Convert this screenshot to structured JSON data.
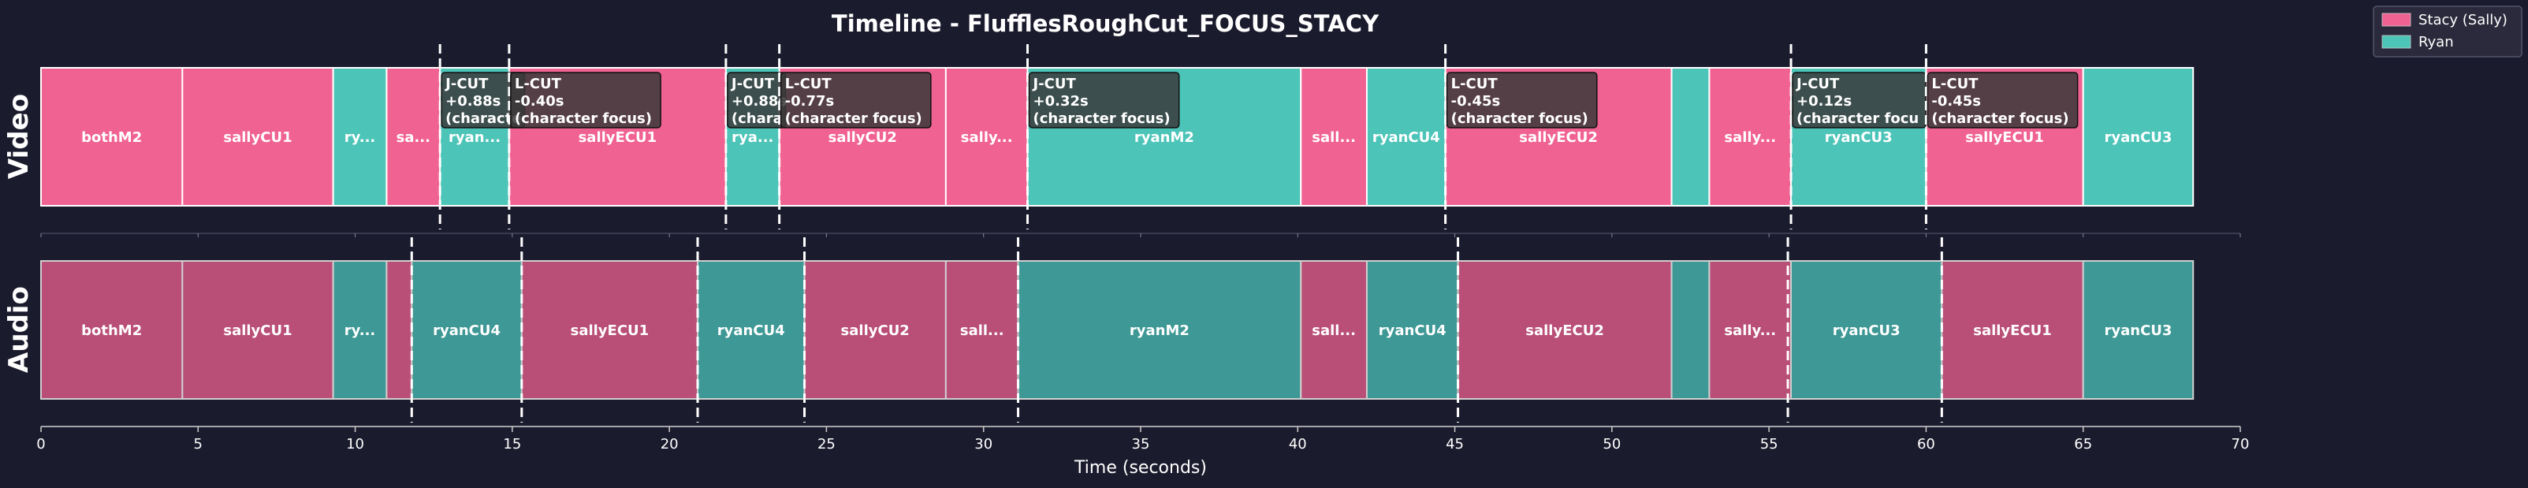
{
  "colors": {
    "background": "#1b1b2e",
    "stacy": "#f06292",
    "ryan": "#4dc4b8",
    "stacy_audio": "#b94f77",
    "ryan_audio": "#3e9895",
    "label_bg": "#3a3a3a",
    "text": "#ffffff",
    "axis": "#cccccc"
  },
  "chart_data": {
    "type": "timeline",
    "title": "Timeline - FlufflesRoughCut_FOCUS_STACY",
    "xlabel": "Time (seconds)",
    "xlim": [
      0,
      70
    ],
    "xticks": [
      0,
      5,
      10,
      15,
      20,
      25,
      30,
      35,
      40,
      45,
      50,
      55,
      60,
      65,
      70
    ],
    "legend": {
      "placement": "top-right",
      "entries": [
        {
          "label": "Stacy (Sally)",
          "speaker": "stacy"
        },
        {
          "label": "Ryan",
          "speaker": "ryan"
        }
      ]
    },
    "tracks": [
      {
        "name": "Video",
        "clips": [
          {
            "label": "bothM2",
            "start": 0.0,
            "end": 4.5,
            "speaker": "stacy"
          },
          {
            "label": "sallyCU1",
            "start": 4.5,
            "end": 9.3,
            "speaker": "stacy"
          },
          {
            "label": "ry...",
            "start": 9.3,
            "end": 11.0,
            "speaker": "ryan"
          },
          {
            "label": "sa...",
            "start": 11.0,
            "end": 12.7,
            "speaker": "stacy"
          },
          {
            "label": "ryan...",
            "start": 12.7,
            "end": 14.9,
            "speaker": "ryan"
          },
          {
            "label": "sallyECU1",
            "start": 14.9,
            "end": 21.8,
            "speaker": "stacy"
          },
          {
            "label": "rya...",
            "start": 21.8,
            "end": 23.5,
            "speaker": "ryan"
          },
          {
            "label": "sallyCU2",
            "start": 23.5,
            "end": 28.8,
            "speaker": "stacy"
          },
          {
            "label": "sally...",
            "start": 28.8,
            "end": 31.4,
            "speaker": "stacy"
          },
          {
            "label": "ryanM2",
            "start": 31.4,
            "end": 40.1,
            "speaker": "ryan"
          },
          {
            "label": "sall...",
            "start": 40.1,
            "end": 42.2,
            "speaker": "stacy"
          },
          {
            "label": "ryanCU4",
            "start": 42.2,
            "end": 44.7,
            "speaker": "ryan"
          },
          {
            "label": "sallyECU2",
            "start": 44.7,
            "end": 51.9,
            "speaker": "stacy"
          },
          {
            "label": "",
            "start": 51.9,
            "end": 53.1,
            "speaker": "ryan"
          },
          {
            "label": "sally...",
            "start": 53.1,
            "end": 55.7,
            "speaker": "stacy"
          },
          {
            "label": "ryanCU3",
            "start": 55.7,
            "end": 60.0,
            "speaker": "ryan"
          },
          {
            "label": "sallyECU1",
            "start": 60.0,
            "end": 65.0,
            "speaker": "stacy"
          },
          {
            "label": "ryanCU3",
            "start": 65.0,
            "end": 68.5,
            "speaker": "ryan"
          }
        ]
      },
      {
        "name": "Audio",
        "clips": [
          {
            "label": "bothM2",
            "start": 0.0,
            "end": 4.5,
            "speaker": "stacy"
          },
          {
            "label": "sallyCU1",
            "start": 4.5,
            "end": 9.3,
            "speaker": "stacy"
          },
          {
            "label": "ry...",
            "start": 9.3,
            "end": 11.0,
            "speaker": "ryan"
          },
          {
            "label": "",
            "start": 11.0,
            "end": 11.8,
            "speaker": "stacy"
          },
          {
            "label": "ryanCU4",
            "start": 11.8,
            "end": 15.3,
            "speaker": "ryan"
          },
          {
            "label": "sallyECU1",
            "start": 15.3,
            "end": 20.9,
            "speaker": "stacy"
          },
          {
            "label": "ryanCU4",
            "start": 20.9,
            "end": 24.3,
            "speaker": "ryan"
          },
          {
            "label": "sallyCU2",
            "start": 24.3,
            "end": 28.8,
            "speaker": "stacy"
          },
          {
            "label": "sall...",
            "start": 28.8,
            "end": 31.1,
            "speaker": "stacy"
          },
          {
            "label": "ryanM2",
            "start": 31.1,
            "end": 40.1,
            "speaker": "ryan"
          },
          {
            "label": "sall...",
            "start": 40.1,
            "end": 42.2,
            "speaker": "stacy"
          },
          {
            "label": "ryanCU4",
            "start": 42.2,
            "end": 45.1,
            "speaker": "ryan"
          },
          {
            "label": "sallyECU2",
            "start": 45.1,
            "end": 51.9,
            "speaker": "stacy"
          },
          {
            "label": "",
            "start": 51.9,
            "end": 53.1,
            "speaker": "ryan"
          },
          {
            "label": "sally...",
            "start": 53.1,
            "end": 55.7,
            "speaker": "stacy"
          },
          {
            "label": "ryanCU3",
            "start": 55.7,
            "end": 60.5,
            "speaker": "ryan"
          },
          {
            "label": "sallyECU1",
            "start": 60.5,
            "end": 65.0,
            "speaker": "stacy"
          },
          {
            "label": "ryanCU3",
            "start": 65.0,
            "end": 68.5,
            "speaker": "ryan"
          }
        ]
      }
    ],
    "annotations": [
      {
        "type": "J-CUT",
        "offset": "+0.88s",
        "note": "(character focus)",
        "video_time": 12.7,
        "audio_time": 11.8,
        "label_lines": [
          "J-CUT",
          "+0.88s",
          "(characte"
        ]
      },
      {
        "type": "L-CUT",
        "offset": "-0.40s",
        "note": "(character focus)",
        "video_time": 14.9,
        "audio_time": 15.3,
        "label_lines": [
          "L-CUT",
          "-0.40s",
          "(character focus)"
        ]
      },
      {
        "type": "J-CUT",
        "offset": "+0.88s",
        "note": "(character focus)",
        "video_time": 21.8,
        "audio_time": 20.9,
        "label_lines": [
          "J-CUT",
          "+0.88s",
          "(chara"
        ]
      },
      {
        "type": "L-CUT",
        "offset": "-0.77s",
        "note": "(character focus)",
        "video_time": 23.5,
        "audio_time": 24.3,
        "label_lines": [
          "L-CUT",
          "-0.77s",
          "(character focus)"
        ]
      },
      {
        "type": "J-CUT",
        "offset": "+0.32s",
        "note": "(character focus)",
        "video_time": 31.4,
        "audio_time": 31.1,
        "label_lines": [
          "J-CUT",
          "+0.32s",
          "(character focus)"
        ]
      },
      {
        "type": "L-CUT",
        "offset": "-0.45s",
        "note": "(character focus)",
        "video_time": 44.7,
        "audio_time": 45.1,
        "label_lines": [
          "L-CUT",
          "-0.45s",
          "(character focus)"
        ]
      },
      {
        "type": "J-CUT",
        "offset": "+0.12s",
        "note": "(character focus)",
        "video_time": 55.7,
        "audio_time": 55.6,
        "label_lines": [
          "J-CUT",
          "+0.12s",
          "(character focu"
        ]
      },
      {
        "type": "L-CUT",
        "offset": "-0.45s",
        "note": "(character focus)",
        "video_time": 60.0,
        "audio_time": 60.5,
        "label_lines": [
          "L-CUT",
          "-0.45s",
          "(character focus)"
        ]
      }
    ]
  }
}
